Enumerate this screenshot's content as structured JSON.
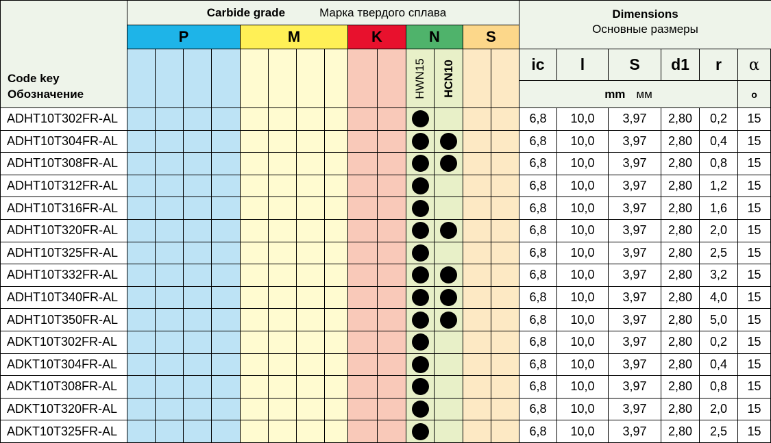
{
  "header": {
    "code_key": "Code key",
    "code_key_ru": "Обозначение",
    "carbide_grade": "Carbide grade",
    "carbide_grade_ru": "Марка твердого сплава",
    "dimensions": "Dimensions",
    "dimensions_ru": "Основные размеры",
    "groups": [
      "P",
      "M",
      "K",
      "N",
      "S"
    ],
    "grades": [
      "HWN15",
      "HCN10"
    ],
    "dim_columns": [
      "ic",
      "l",
      "S",
      "d1",
      "r",
      "α"
    ],
    "units": [
      "mm",
      "мм"
    ],
    "angle_unit": "o"
  },
  "rows": [
    {
      "code": "ADHT10T302FR-AL",
      "HWN15": true,
      "HCN10": false,
      "dims": [
        "6,8",
        "10,0",
        "3,97",
        "2,80",
        "0,2",
        "15"
      ]
    },
    {
      "code": "ADHT10T304FR-AL",
      "HWN15": true,
      "HCN10": true,
      "dims": [
        "6,8",
        "10,0",
        "3,97",
        "2,80",
        "0,4",
        "15"
      ]
    },
    {
      "code": "ADHT10T308FR-AL",
      "HWN15": true,
      "HCN10": true,
      "dims": [
        "6,8",
        "10,0",
        "3,97",
        "2,80",
        "0,8",
        "15"
      ]
    },
    {
      "code": "ADHT10T312FR-AL",
      "HWN15": true,
      "HCN10": false,
      "dims": [
        "6,8",
        "10,0",
        "3,97",
        "2,80",
        "1,2",
        "15"
      ]
    },
    {
      "code": "ADHT10T316FR-AL",
      "HWN15": true,
      "HCN10": false,
      "dims": [
        "6,8",
        "10,0",
        "3,97",
        "2,80",
        "1,6",
        "15"
      ]
    },
    {
      "code": "ADHT10T320FR-AL",
      "HWN15": true,
      "HCN10": true,
      "dims": [
        "6,8",
        "10,0",
        "3,97",
        "2,80",
        "2,0",
        "15"
      ]
    },
    {
      "code": "ADHT10T325FR-AL",
      "HWN15": true,
      "HCN10": false,
      "dims": [
        "6,8",
        "10,0",
        "3,97",
        "2,80",
        "2,5",
        "15"
      ]
    },
    {
      "code": "ADHT10T332FR-AL",
      "HWN15": true,
      "HCN10": true,
      "dims": [
        "6,8",
        "10,0",
        "3,97",
        "2,80",
        "3,2",
        "15"
      ]
    },
    {
      "code": "ADHT10T340FR-AL",
      "HWN15": true,
      "HCN10": true,
      "dims": [
        "6,8",
        "10,0",
        "3,97",
        "2,80",
        "4,0",
        "15"
      ]
    },
    {
      "code": "ADHT10T350FR-AL",
      "HWN15": true,
      "HCN10": true,
      "dims": [
        "6,8",
        "10,0",
        "3,97",
        "2,80",
        "5,0",
        "15"
      ]
    },
    {
      "code": "ADKT10T302FR-AL",
      "HWN15": true,
      "HCN10": false,
      "dims": [
        "6,8",
        "10,0",
        "3,97",
        "2,80",
        "0,2",
        "15"
      ]
    },
    {
      "code": "ADKT10T304FR-AL",
      "HWN15": true,
      "HCN10": false,
      "dims": [
        "6,8",
        "10,0",
        "3,97",
        "2,80",
        "0,4",
        "15"
      ]
    },
    {
      "code": "ADKT10T308FR-AL",
      "HWN15": true,
      "HCN10": false,
      "dims": [
        "6,8",
        "10,0",
        "3,97",
        "2,80",
        "0,8",
        "15"
      ]
    },
    {
      "code": "ADKT10T320FR-AL",
      "HWN15": true,
      "HCN10": false,
      "dims": [
        "6,8",
        "10,0",
        "3,97",
        "2,80",
        "2,0",
        "15"
      ]
    },
    {
      "code": "ADKT10T325FR-AL",
      "HWN15": true,
      "HCN10": false,
      "dims": [
        "6,8",
        "10,0",
        "3,97",
        "2,80",
        "2,5",
        "15"
      ]
    }
  ]
}
